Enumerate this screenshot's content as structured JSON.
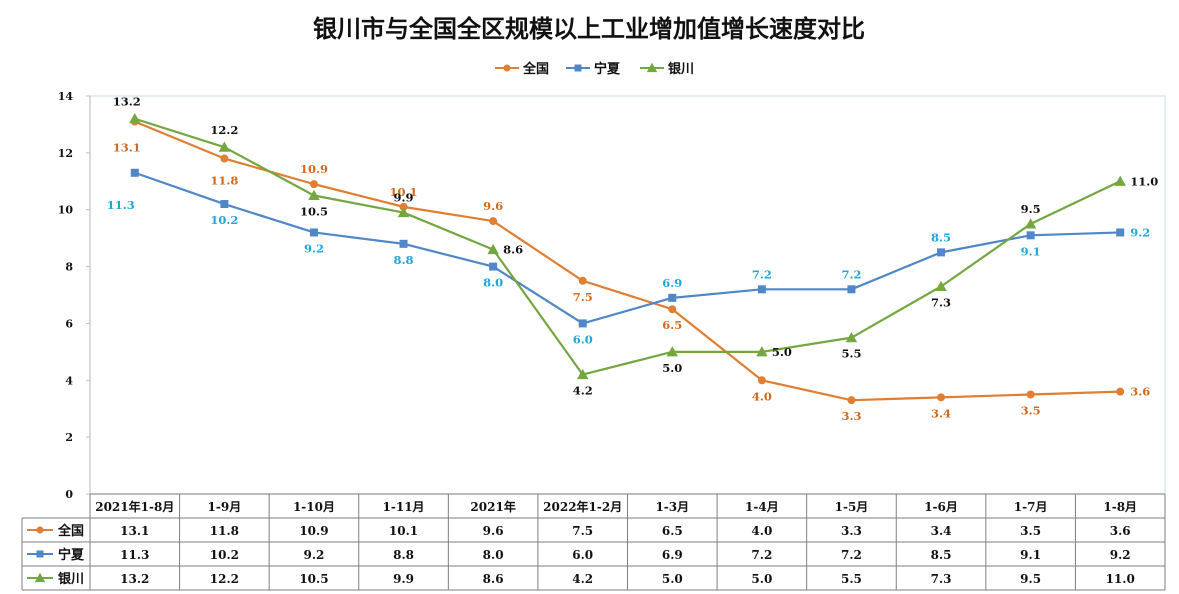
{
  "chart_data": {
    "type": "line",
    "title": "银川市与全国全区规模以上工业增加值增长速度对比",
    "xlabel": "",
    "ylabel": "",
    "ylim": [
      0,
      14
    ],
    "yticks": [
      0,
      2,
      4,
      6,
      8,
      10,
      12,
      14
    ],
    "grid": false,
    "legend_position": "top-center",
    "data_table": true,
    "categories": [
      "2021年1-8月",
      "1-9月",
      "1-10月",
      "1-11月",
      "2021年",
      "2022年1-2月",
      "1-3月",
      "1-4月",
      "1-5月",
      "1-6月",
      "1-7月",
      "1-8月"
    ],
    "series": [
      {
        "name": "全国",
        "color": "#E07E34",
        "label_color": "#D2691E",
        "marker": "circle",
        "values": [
          13.1,
          11.8,
          10.9,
          10.1,
          9.6,
          7.5,
          6.5,
          4.0,
          3.3,
          3.4,
          3.5,
          3.6
        ],
        "labels": [
          "13.1",
          "11.8",
          "10.9",
          "10.1",
          "9.6",
          "7.5",
          "6.5",
          "4.0",
          "3.3",
          "3.4",
          "3.5",
          "3.6"
        ]
      },
      {
        "name": "宁夏",
        "color": "#4F87C8",
        "label_color": "#1EA6D8",
        "marker": "square",
        "values": [
          11.3,
          10.2,
          9.2,
          8.8,
          8.0,
          6.0,
          6.9,
          7.2,
          7.2,
          8.5,
          9.1,
          9.2
        ],
        "labels": [
          "11.3",
          "10.2",
          "9.2",
          "8.8",
          "8.0",
          "6.0",
          "6.9",
          "7.2",
          "7.2",
          "8.5",
          "9.1",
          "9.2"
        ]
      },
      {
        "name": "银川",
        "color": "#74A740",
        "label_color": "#111111",
        "marker": "triangle",
        "values": [
          13.2,
          12.2,
          10.5,
          9.9,
          8.6,
          4.2,
          5.0,
          5.0,
          5.5,
          7.3,
          9.5,
          11.0
        ],
        "labels": [
          "13.2",
          "12.2",
          "10.5",
          "9.9",
          "8.6",
          "4.2",
          "5.0",
          "5.0",
          "5.5",
          "7.3",
          "9.5",
          "11.0"
        ]
      }
    ]
  }
}
